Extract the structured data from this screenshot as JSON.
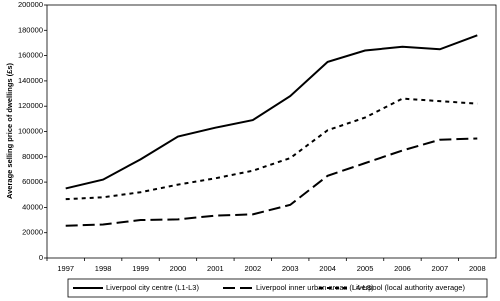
{
  "chart_data": {
    "type": "line",
    "y_label": "Average selling price of dwellings (£s)",
    "categories": [
      "1997",
      "1998",
      "1999",
      "2000",
      "2001",
      "2002",
      "2003",
      "2004",
      "2005",
      "2006",
      "2007",
      "2008"
    ],
    "series": [
      {
        "name": "Liverpool city centre (L1-L3)",
        "color": "#000000",
        "dash": "solid",
        "values": [
          55000,
          62000,
          78000,
          96000,
          103000,
          109000,
          128000,
          155000,
          164000,
          167000,
          165000,
          176000
        ]
      },
      {
        "name": "Liverpool inner urban areas (L4-L8)",
        "color": "#000000",
        "dash": "long",
        "values": [
          25500,
          26500,
          30000,
          30500,
          33500,
          34500,
          42000,
          65000,
          75000,
          85000,
          93500,
          94500
        ]
      },
      {
        "name": "Liverpool (local authority average)",
        "color": "#000000",
        "dash": "short",
        "values": [
          46500,
          48000,
          52000,
          58000,
          63000,
          69000,
          79000,
          101000,
          111000,
          126000,
          124000,
          122000
        ]
      }
    ],
    "ylim": [
      0,
      200000
    ],
    "yticks": [
      0,
      20000,
      40000,
      60000,
      80000,
      100000,
      120000,
      140000,
      160000,
      180000,
      200000
    ],
    "grid": false,
    "legend": "bottom"
  }
}
